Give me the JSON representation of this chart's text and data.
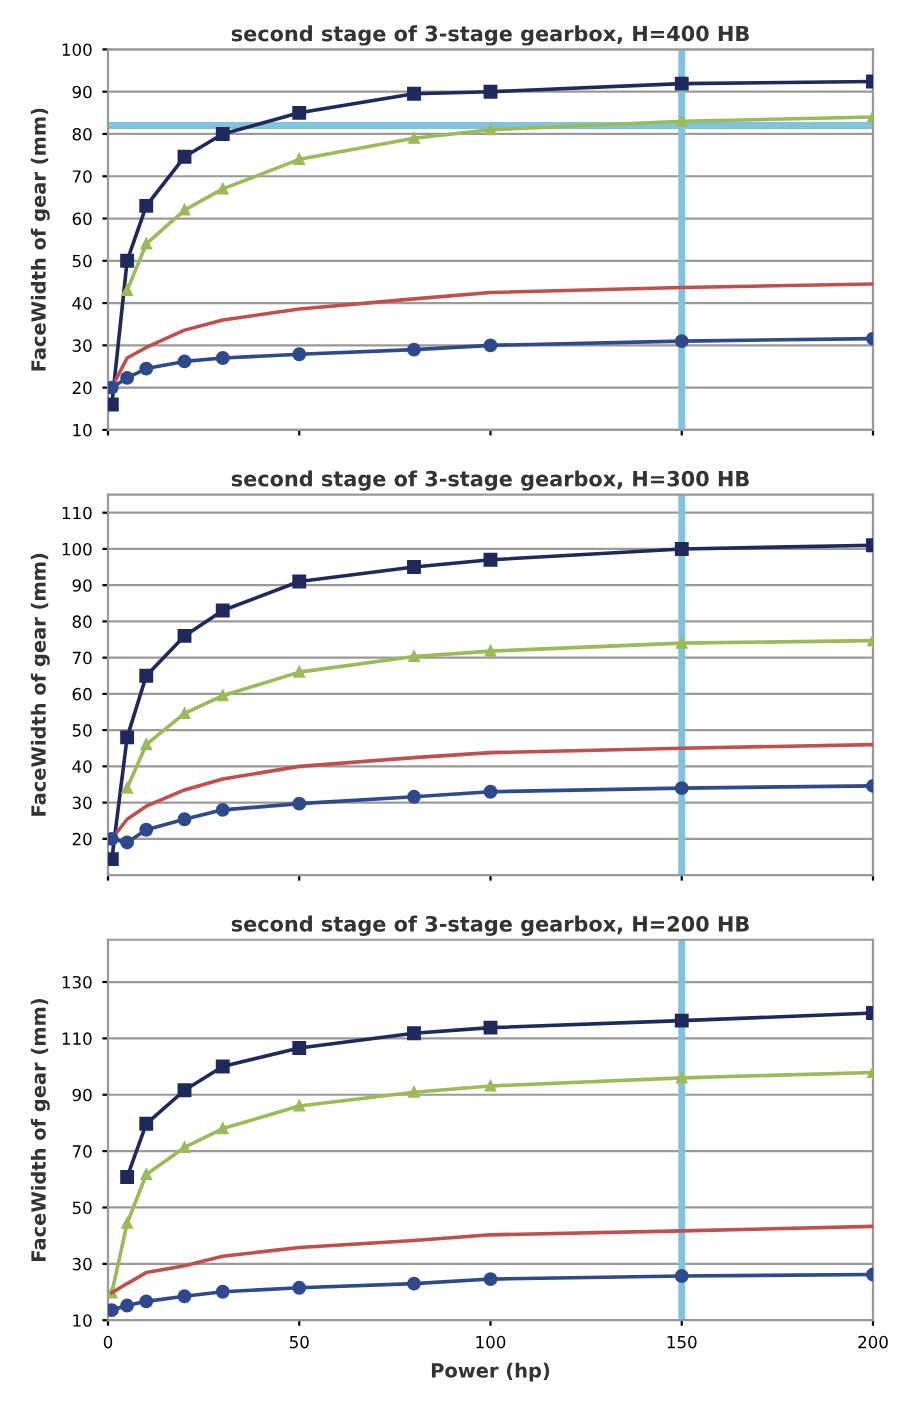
{
  "chart_data": [
    {
      "type": "line",
      "title": "second stage of 3-stage gearbox, H=400 HB",
      "ylabel": "FaceWidth of gear (mm)",
      "x": [
        1,
        5,
        10,
        20,
        30,
        50,
        80,
        100,
        150,
        200
      ],
      "xlim": [
        0,
        200
      ],
      "xticks": [
        0,
        50,
        100,
        150,
        200
      ],
      "ylim": [
        10,
        100
      ],
      "yticks": [
        10,
        20,
        30,
        40,
        50,
        60,
        70,
        80,
        90,
        100
      ],
      "grid": "y",
      "tick_labels": "y",
      "ref_lines": [
        {
          "axis": "x",
          "value": 150,
          "color": "#7fc4dc"
        },
        {
          "axis": "y",
          "value": 82,
          "color": "#7fc4dc"
        }
      ],
      "series": [
        {
          "color": "#1f2a5c",
          "marker": "square",
          "values": [
            16,
            50,
            63,
            74.6,
            80,
            85,
            89.5,
            90,
            91.9,
            92.4
          ]
        },
        {
          "color": "#9bbb59",
          "marker": "triangle",
          "values": [
            null,
            43,
            54,
            62,
            67,
            74,
            79,
            81,
            83,
            84
          ]
        },
        {
          "color": "#c0504d",
          "marker": "none",
          "values": [
            20,
            27,
            29.5,
            33.6,
            36,
            38.6,
            41,
            42.5,
            43.7,
            44.5
          ]
        },
        {
          "color": "#2e4a8c",
          "marker": "circle",
          "values": [
            20,
            22.3,
            24.5,
            26.2,
            27,
            27.9,
            29,
            30,
            31,
            31.6
          ]
        }
      ]
    },
    {
      "type": "line",
      "title": "second stage of 3-stage gearbox, H=300 HB",
      "ylabel": "FaceWidth of gear (mm)",
      "x": [
        1,
        5,
        10,
        20,
        30,
        50,
        80,
        100,
        150,
        200
      ],
      "xlim": [
        0,
        200
      ],
      "xticks": [
        0,
        50,
        100,
        150,
        200
      ],
      "ylim": [
        10,
        115
      ],
      "yticks": [
        20,
        30,
        40,
        50,
        60,
        70,
        80,
        90,
        100,
        110
      ],
      "grid": "y",
      "tick_labels": "y",
      "ref_lines": [
        {
          "axis": "x",
          "value": 150,
          "color": "#7fc4dc"
        }
      ],
      "series": [
        {
          "color": "#1f2a5c",
          "marker": "square",
          "values": [
            14.4,
            48,
            65,
            76,
            83,
            91,
            95,
            97,
            100,
            101
          ]
        },
        {
          "color": "#9bbb59",
          "marker": "triangle",
          "values": [
            null,
            34,
            46,
            54.6,
            59.5,
            66,
            70.3,
            71.8,
            74,
            74.7
          ]
        },
        {
          "color": "#c0504d",
          "marker": "none",
          "values": [
            20,
            25.4,
            29,
            33.5,
            36.5,
            40,
            42.4,
            43.8,
            45,
            46
          ]
        },
        {
          "color": "#2e4a8c",
          "marker": "circle",
          "values": [
            20,
            19,
            22.5,
            25.4,
            28,
            29.7,
            31.6,
            33,
            34,
            34.6
          ]
        }
      ]
    },
    {
      "type": "line",
      "title": "second stage of 3-stage gearbox, H=200 HB",
      "xlabel": "Power (hp)",
      "ylabel": "FaceWidth of gear (mm)",
      "x": [
        1,
        5,
        10,
        20,
        30,
        50,
        80,
        100,
        150,
        200
      ],
      "xlim": [
        0,
        200
      ],
      "xticks": [
        0,
        50,
        100,
        150,
        200
      ],
      "ylim": [
        10,
        145
      ],
      "yticks": [
        10,
        30,
        50,
        70,
        90,
        110,
        130
      ],
      "grid": "y",
      "ref_lines": [
        {
          "axis": "x",
          "value": 150,
          "color": "#7fc4dc"
        }
      ],
      "series": [
        {
          "color": "#1f2a5c",
          "marker": "square",
          "values": [
            null,
            60.8,
            79.7,
            91.6,
            100,
            106.6,
            111.8,
            113.8,
            116.3,
            119
          ]
        },
        {
          "color": "#9bbb59",
          "marker": "triangle",
          "values": [
            19.7,
            44.4,
            61.7,
            71.3,
            78,
            86,
            90.9,
            93.1,
            96,
            97.9
          ]
        },
        {
          "color": "#c0504d",
          "marker": "none",
          "values": [
            19.7,
            23,
            26.9,
            29.3,
            32.7,
            35.8,
            38.3,
            40.3,
            41.7,
            43.3
          ]
        },
        {
          "color": "#2e4a8c",
          "marker": "circle",
          "values": [
            13.6,
            15.2,
            16.7,
            18.5,
            20.1,
            21.5,
            23,
            24.6,
            25.7,
            26.2
          ]
        }
      ]
    }
  ]
}
